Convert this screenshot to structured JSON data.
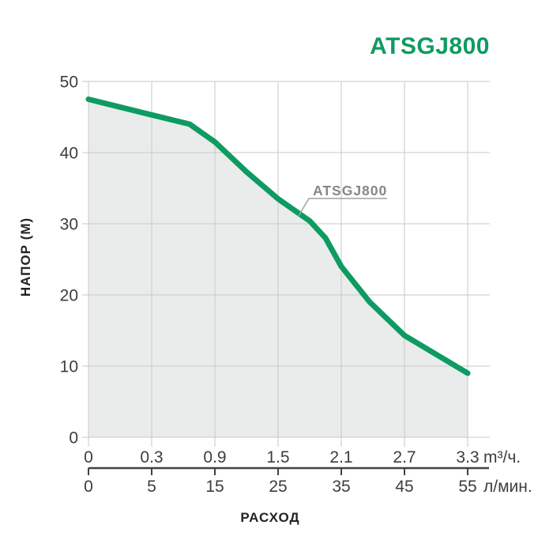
{
  "page": {
    "background": "#ffffff"
  },
  "header": {
    "title": "ATSGJ800"
  },
  "colors": {
    "accent_green": "#0e9b62",
    "area_fill": "#e9eceb",
    "gridline": "#c6caca",
    "axis_line": "#3f4243",
    "tick_text": "#3b3e3f",
    "caption_text": "#222425",
    "annotation_gray": "#85878a",
    "annotation_line": "#9fa1a3"
  },
  "chart_data": {
    "type": "line",
    "title": "ATSGJ800",
    "xlabel": "РАСХОД",
    "ylabel": "НАПОР (М)",
    "grid": true,
    "x_axis_flow_m3h": {
      "ticks": [
        0,
        0.3,
        0.9,
        1.5,
        2.1,
        2.7,
        3.3
      ],
      "unit": "m³/ч."
    },
    "x_axis_flow_lmin": {
      "ticks": [
        0,
        5,
        15,
        25,
        35,
        45,
        55
      ],
      "unit": "л/мин."
    },
    "y_axis": {
      "ticks": [
        0,
        10,
        20,
        30,
        40,
        50
      ],
      "ylim": [
        0,
        50
      ]
    },
    "series": [
      {
        "name": "ATSGJ800",
        "color": "#0e9b62",
        "fill": "#e9eceb",
        "x_unit": "л/мин",
        "y_unit": "м",
        "points": [
          [
            0,
            47.5
          ],
          [
            5,
            45.3
          ],
          [
            11,
            44.0
          ],
          [
            15,
            41.5
          ],
          [
            20,
            37.3
          ],
          [
            25,
            33.5
          ],
          [
            30,
            30.4
          ],
          [
            32.5,
            28.0
          ],
          [
            35,
            24.0
          ],
          [
            39.5,
            19.0
          ],
          [
            45,
            14.3
          ],
          [
            55,
            9.0
          ]
        ]
      }
    ],
    "annotation": {
      "label": "ATSGJ800"
    }
  }
}
